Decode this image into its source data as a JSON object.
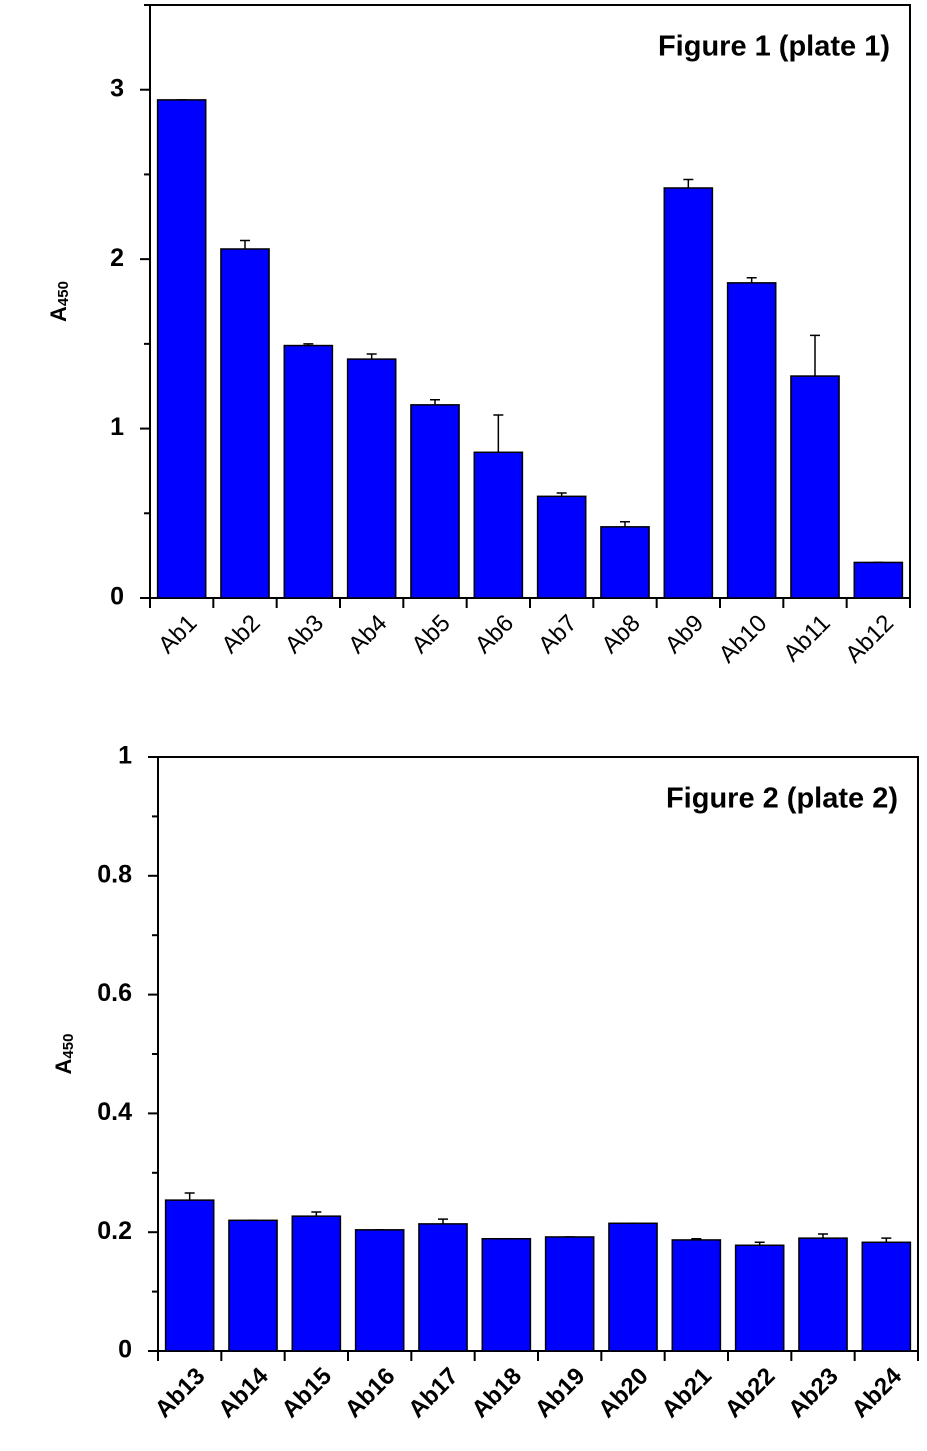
{
  "chart_data": [
    {
      "type": "bar",
      "title": "Figure 1 (plate 1)",
      "ylabel": "A",
      "ylabel_sub": "450",
      "categories": [
        "Ab1",
        "Ab2",
        "Ab3",
        "Ab4",
        "Ab5",
        "Ab6",
        "Ab7",
        "Ab8",
        "Ab9",
        "Ab10",
        "Ab11",
        "Ab12"
      ],
      "values": [
        2.94,
        2.06,
        1.49,
        1.41,
        1.14,
        0.86,
        0.6,
        0.42,
        2.42,
        1.86,
        1.31,
        0.21
      ],
      "errors": [
        0,
        0.05,
        0.01,
        0.03,
        0.03,
        0.22,
        0.02,
        0.03,
        0.05,
        0.03,
        0.24,
        0
      ],
      "color": "#0000ff",
      "ylim": [
        0,
        3.5
      ],
      "yticks": [
        0,
        1,
        2,
        3
      ],
      "yminorticks": [
        0.5,
        1.5,
        2.5,
        3.5
      ]
    },
    {
      "type": "bar",
      "title": "Figure 2 (plate 2)",
      "ylabel": "A",
      "ylabel_sub": "450",
      "categories": [
        "Ab13",
        "Ab14",
        "Ab15",
        "Ab16",
        "Ab17",
        "Ab18",
        "Ab19",
        "Ab20",
        "Ab21",
        "Ab22",
        "Ab23",
        "Ab24"
      ],
      "values": [
        0.254,
        0.22,
        0.227,
        0.204,
        0.214,
        0.189,
        0.192,
        0.215,
        0.187,
        0.178,
        0.19,
        0.183
      ],
      "errors": [
        0.012,
        0,
        0.007,
        0,
        0.008,
        0,
        0,
        0,
        0.002,
        0.005,
        0.007,
        0.007
      ],
      "color": "#0000ff",
      "ylim": [
        0,
        1
      ],
      "yticks": [
        0,
        0.2,
        0.4,
        0.6,
        0.8,
        1
      ],
      "yminorticks": [
        0.1,
        0.3,
        0.5,
        0.7,
        0.9
      ]
    }
  ]
}
